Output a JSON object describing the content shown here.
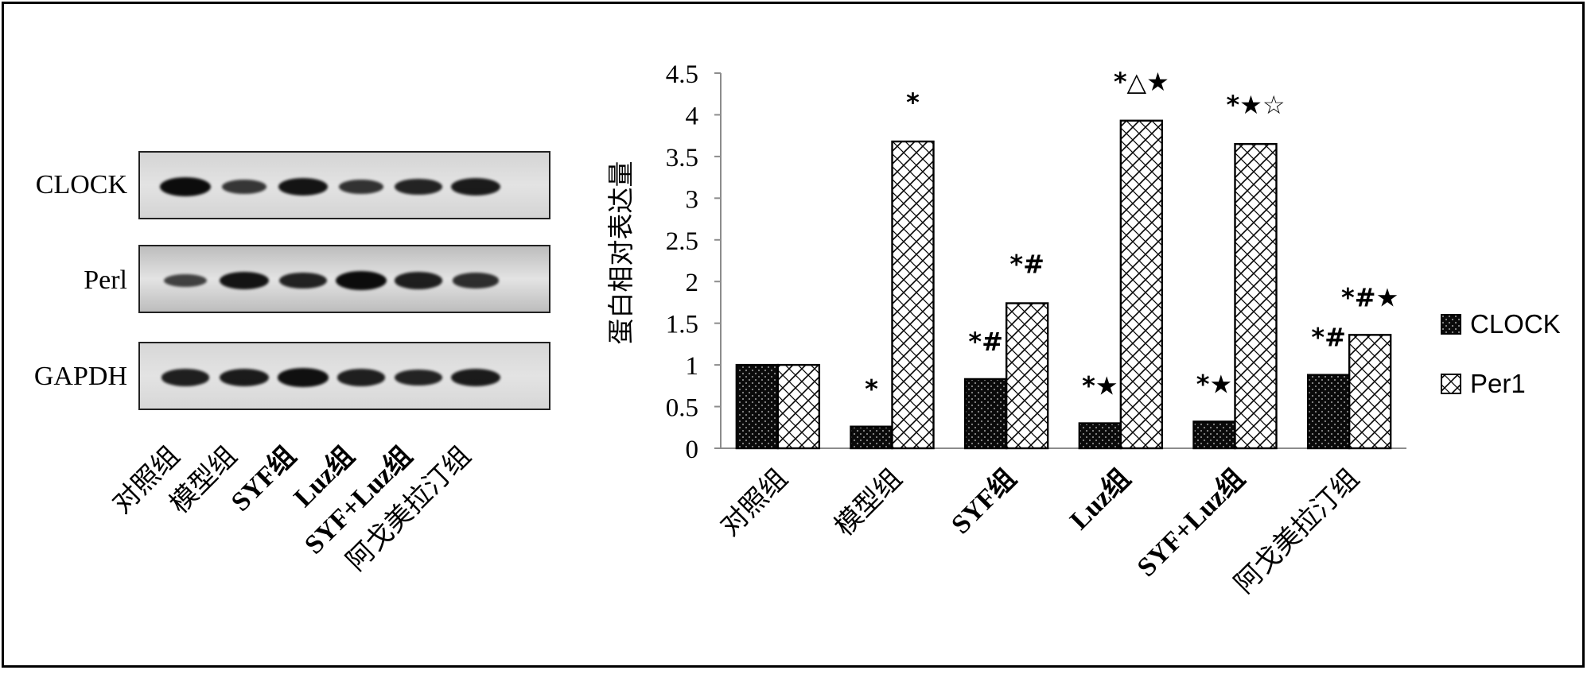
{
  "blot": {
    "rows": [
      {
        "label": "CLOCK",
        "intensities": [
          1.0,
          0.55,
          0.9,
          0.6,
          0.75,
          0.85
        ],
        "background": "#d4d4d4"
      },
      {
        "label": "Perl",
        "intensities": [
          0.45,
          0.9,
          0.75,
          1.0,
          0.8,
          0.65
        ],
        "background": "#bdbdbd"
      },
      {
        "label": "GAPDH",
        "intensities": [
          0.8,
          0.85,
          0.95,
          0.8,
          0.75,
          0.85
        ],
        "background": "#d7d7d7"
      }
    ],
    "lane_labels": [
      "对照组",
      "模型组",
      "SYF组",
      "Luz组",
      "SYF+Luz组",
      "阿戈美拉汀组"
    ]
  },
  "chart_data": {
    "type": "bar",
    "categories": [
      "对照组",
      "模型组",
      "SYF组",
      "Luz组",
      "SYF+Luz组",
      "阿戈美拉汀组"
    ],
    "series": [
      {
        "name": "CLOCK",
        "values": [
          1.0,
          0.26,
          0.83,
          0.3,
          0.32,
          0.88
        ],
        "pattern": "dots"
      },
      {
        "name": "Per1",
        "values": [
          1.0,
          3.68,
          1.74,
          3.93,
          3.65,
          1.36
        ],
        "pattern": "crosshatch"
      }
    ],
    "significance": [
      [
        "",
        ""
      ],
      [
        "*",
        "*"
      ],
      [
        "*#",
        "*#"
      ],
      [
        "*★",
        "*△★"
      ],
      [
        "*★",
        "*★☆"
      ],
      [
        "*#",
        "*#★"
      ]
    ],
    "ylabel": "蛋白相对表达量",
    "ylim": [
      0,
      4.5
    ],
    "yticks": [
      "0",
      "0.5",
      "1",
      "1.5",
      "2",
      "2.5",
      "3",
      "3.5",
      "4",
      "4.5"
    ],
    "legend_position": "right"
  }
}
